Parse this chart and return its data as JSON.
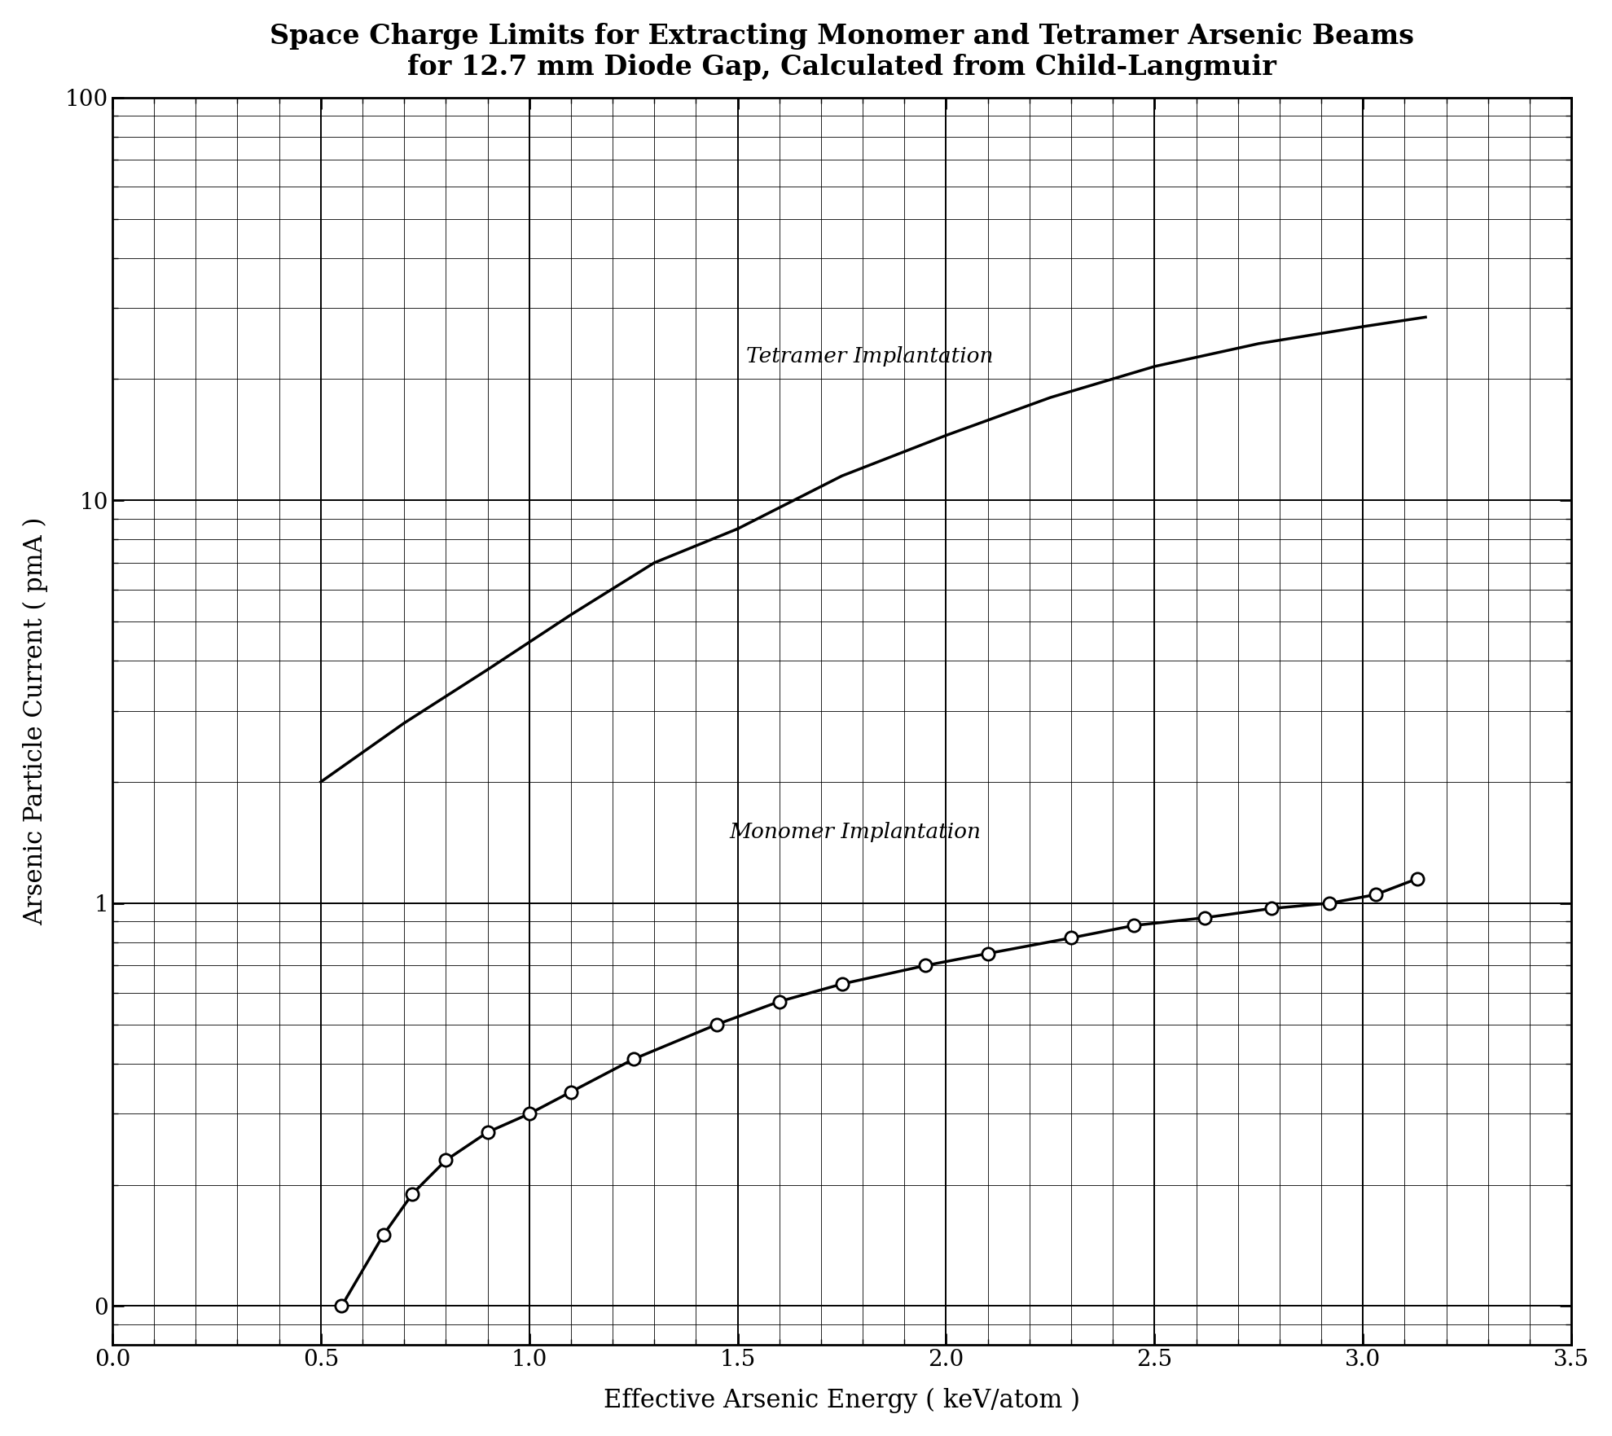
{
  "title_line1": "Space Charge Limits for Extracting Monomer and Tetramer Arsenic Beams",
  "title_line2": "for 12.7 mm Diode Gap, Calculated from Child-Langmuir",
  "xlabel": "Effective Arsenic Energy ( keV/atom )",
  "ylabel": "Arsenic Particle Current ( pmA )",
  "xlim": [
    0.0,
    3.5
  ],
  "ylim_log": [
    0.08,
    100
  ],
  "xticks": [
    0.0,
    0.5,
    1.0,
    1.5,
    2.0,
    2.5,
    3.0,
    3.5
  ],
  "monomer_x": [
    0.55,
    0.65,
    0.72,
    0.8,
    0.9,
    1.0,
    1.1,
    1.25,
    1.45,
    1.6,
    1.75,
    1.95,
    2.1,
    2.3,
    2.45,
    2.62,
    2.78,
    2.92,
    3.03,
    3.13
  ],
  "monomer_y": [
    0.1,
    0.15,
    0.19,
    0.23,
    0.27,
    0.3,
    0.34,
    0.41,
    0.5,
    0.57,
    0.63,
    0.7,
    0.75,
    0.82,
    0.88,
    0.92,
    0.97,
    1.0,
    1.05,
    1.15
  ],
  "tetramer_seg1_x": [
    0.5,
    0.7,
    0.9,
    1.1,
    1.3,
    1.5
  ],
  "tetramer_seg1_y": [
    2.0,
    2.8,
    3.8,
    5.2,
    7.0,
    8.5
  ],
  "tetramer_seg2_x": [
    1.5,
    1.75,
    2.0,
    2.25,
    2.5,
    2.75,
    3.0,
    3.15
  ],
  "tetramer_seg2_y": [
    8.5,
    11.5,
    14.5,
    18.0,
    21.5,
    24.5,
    27.0,
    28.5
  ],
  "monomer_label": "Monomer Implantation",
  "tetramer_label": "Tetramer Implantation",
  "line_color": "#000000",
  "bg_color": "#ffffff",
  "title_fontsize": 24,
  "label_fontsize": 22,
  "tick_fontsize": 20,
  "annotation_fontsize": 19
}
